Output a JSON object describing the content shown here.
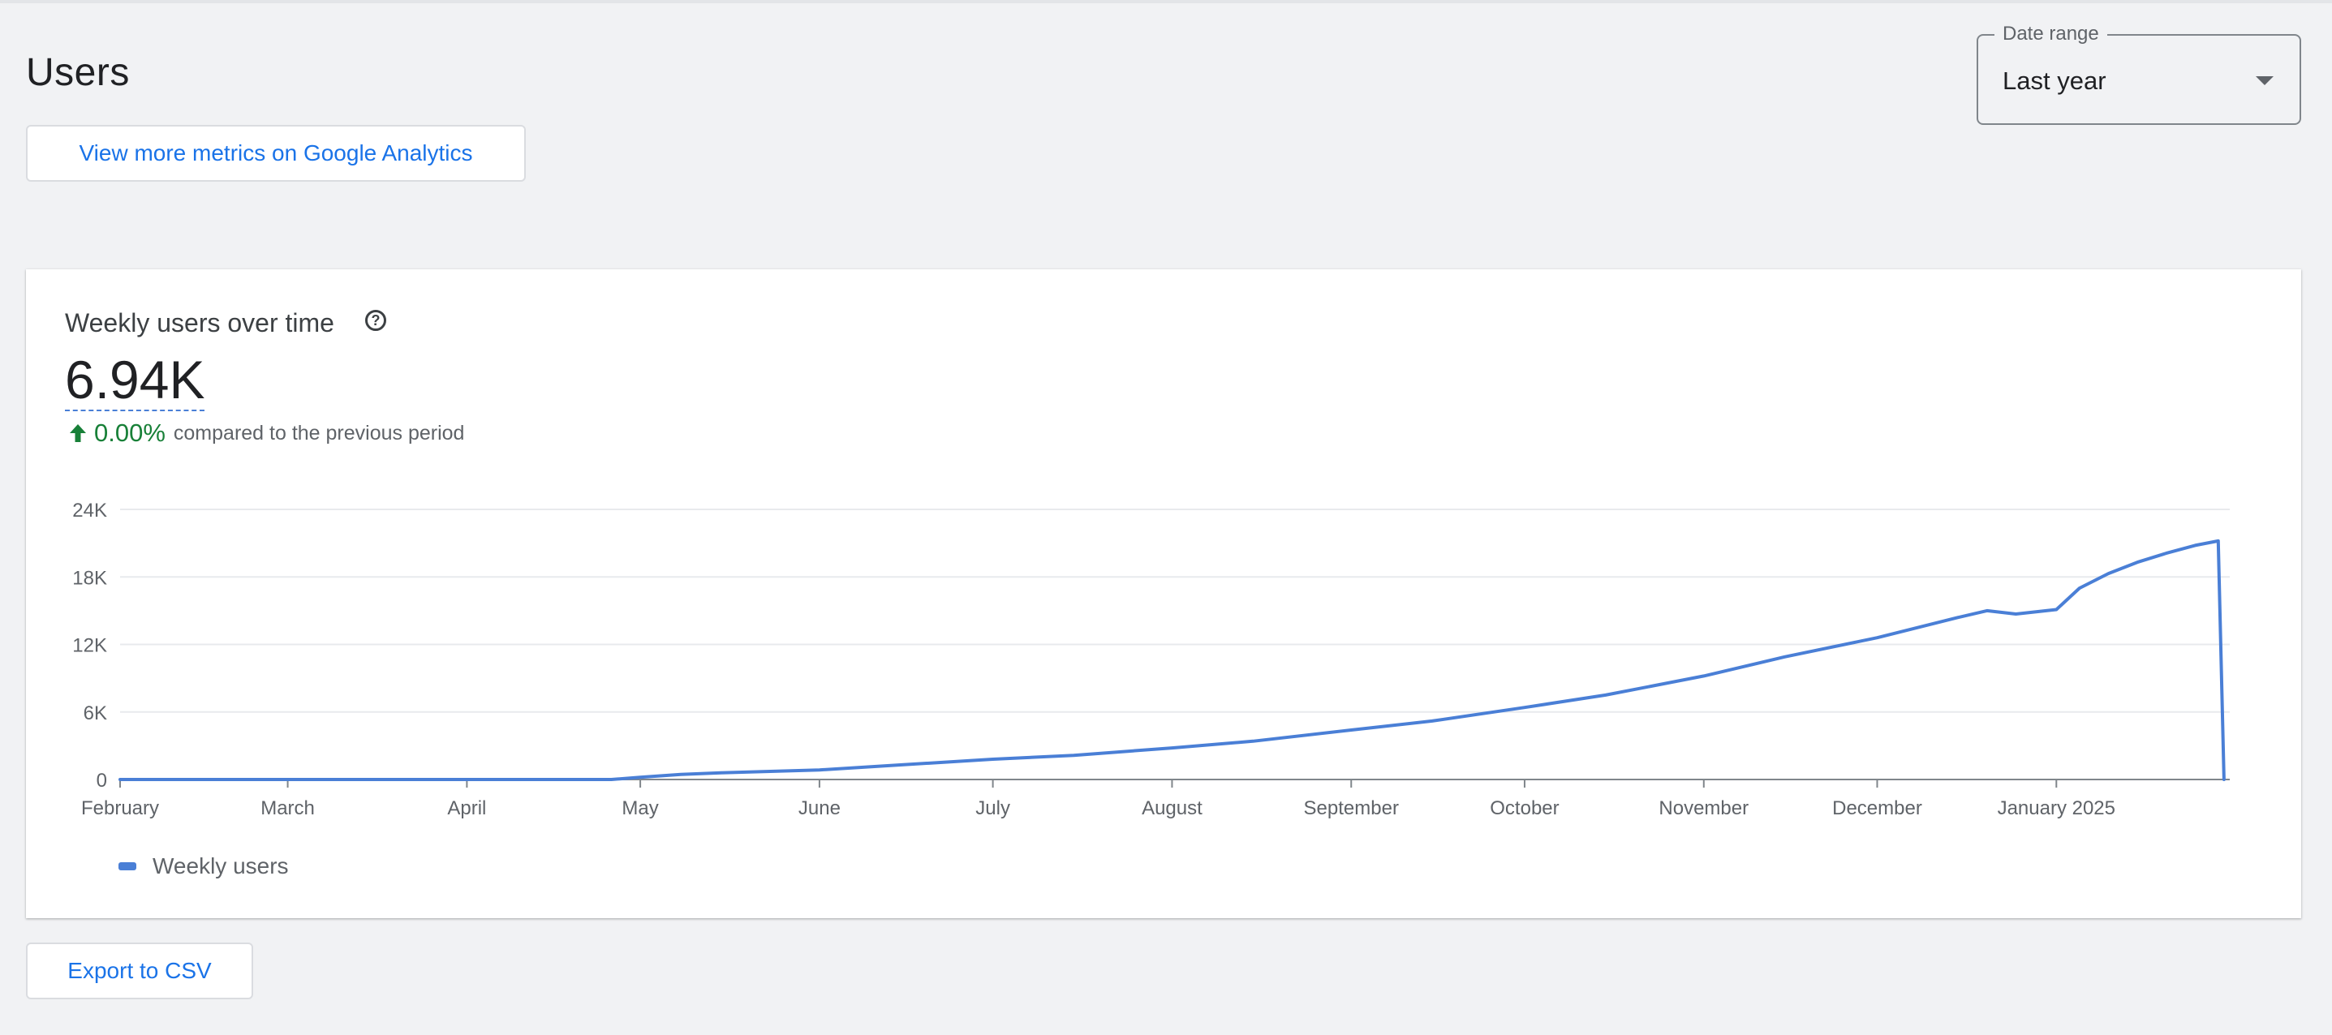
{
  "page": {
    "title": "Users",
    "ga_button_label": "View more metrics on Google Analytics",
    "export_button_label": "Export to CSV"
  },
  "date_range": {
    "legend": "Date range",
    "value": "Last year",
    "icon": "dropdown-caret-icon"
  },
  "card": {
    "title": "Weekly users over time",
    "help_icon": "help-circle-icon",
    "value": "6.94K",
    "change_pct": "0.00%",
    "change_text": "compared to the previous period",
    "change_icon": "arrow-up-icon"
  },
  "colors": {
    "line": "#4a7fd6",
    "link": "#1a73e8",
    "positive": "#188038"
  },
  "chart_data": {
    "type": "line",
    "title": "Weekly users over time",
    "ylim": [
      0,
      24000
    ],
    "yticks": [
      0,
      6000,
      12000,
      18000,
      24000
    ],
    "ytick_labels": [
      "0",
      "6K",
      "12K",
      "18K",
      "24K"
    ],
    "xlim": [
      "2024-02-01",
      "2025-01-31"
    ],
    "xticks": [
      "2024-02-01",
      "2024-03-01",
      "2024-04-01",
      "2024-05-01",
      "2024-06-01",
      "2024-07-01",
      "2024-08-01",
      "2024-09-01",
      "2024-10-01",
      "2024-11-01",
      "2024-12-01",
      "2025-01-01"
    ],
    "xtick_labels": [
      "February",
      "March",
      "April",
      "May",
      "June",
      "July",
      "August",
      "September",
      "October",
      "November",
      "December",
      "January 2025"
    ],
    "grid": true,
    "legend_position": "bottom-left",
    "series": [
      {
        "name": "Weekly users",
        "x": [
          "2024-02-01",
          "2024-03-01",
          "2024-04-01",
          "2024-04-26",
          "2024-05-01",
          "2024-05-08",
          "2024-05-15",
          "2024-06-01",
          "2024-06-15",
          "2024-07-01",
          "2024-07-15",
          "2024-08-01",
          "2024-08-15",
          "2024-09-01",
          "2024-09-15",
          "2024-10-01",
          "2024-10-15",
          "2024-11-01",
          "2024-11-15",
          "2024-12-01",
          "2024-12-15",
          "2024-12-20",
          "2024-12-25",
          "2025-01-01",
          "2025-01-05",
          "2025-01-10",
          "2025-01-15",
          "2025-01-20",
          "2025-01-25",
          "2025-01-29",
          "2025-01-30"
        ],
        "values": [
          0,
          0,
          0,
          0,
          200,
          450,
          600,
          850,
          1300,
          1800,
          2150,
          2800,
          3400,
          4400,
          5200,
          6400,
          7500,
          9200,
          10900,
          12600,
          14400,
          15000,
          14700,
          15100,
          17000,
          18300,
          19300,
          20100,
          20800,
          21200,
          0
        ]
      }
    ]
  }
}
